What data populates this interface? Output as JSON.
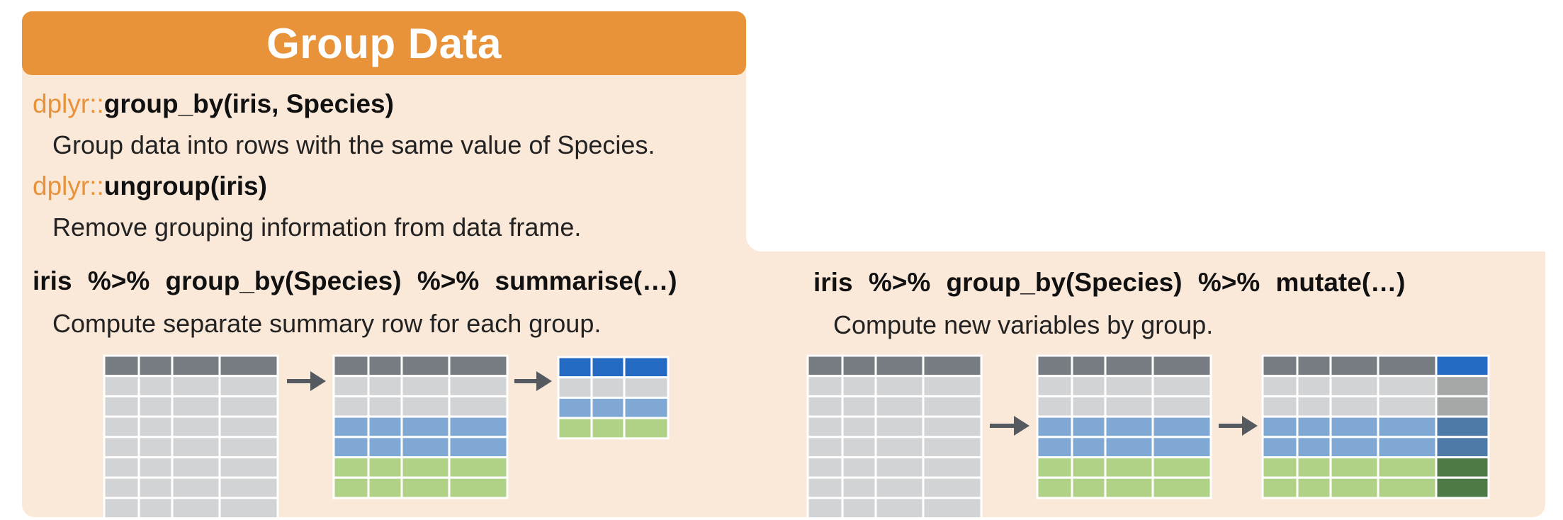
{
  "header": {
    "title": "Group Data"
  },
  "functions": [
    {
      "ns": "dplyr::",
      "call": "group_by(iris, Species)",
      "description": "Group data into rows with the same value of Species."
    },
    {
      "ns": "dplyr::",
      "call": "ungroup(iris)",
      "description": "Remove grouping information from data frame."
    }
  ],
  "examples": [
    {
      "code": "iris  %>%  group_by(Species)  %>%  summarise(…)",
      "description": "Compute separate summary row for each group."
    },
    {
      "code": "iris  %>%  group_by(Species)  %>%  mutate(…)",
      "description": "Compute new variables by group."
    }
  ],
  "colors": {
    "panel": "#FAE8D9",
    "header": "#E8923A",
    "header_cell": "#777B82",
    "grey_cell": "#D1D3D5",
    "blue_cell": "#7FA8D4",
    "green_cell": "#B0D287",
    "summary_header": "#2469C2",
    "arrow": "#555A60",
    "mutate_grey": "#A5A8A6",
    "mutate_blue": "#4E7AA8",
    "mutate_green": "#4E7A45"
  }
}
